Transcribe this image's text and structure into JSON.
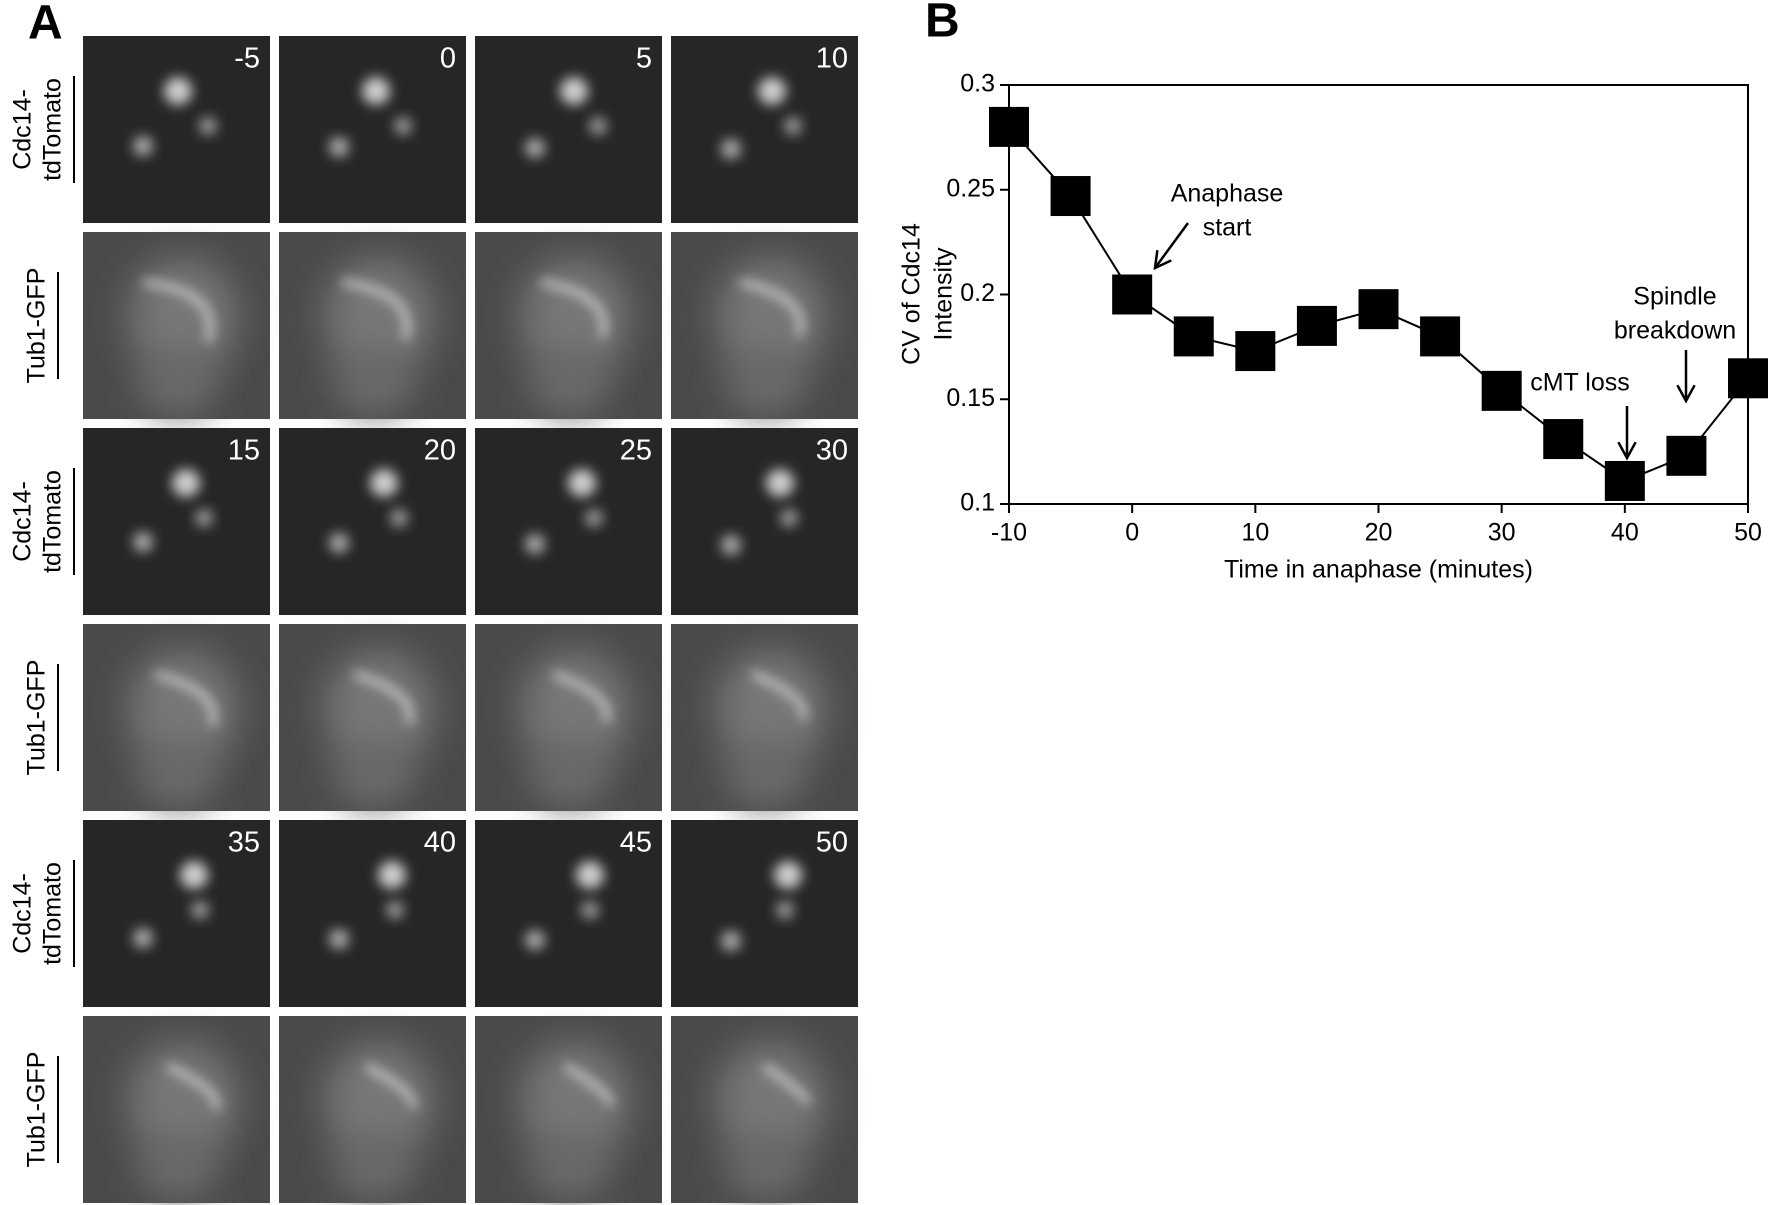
{
  "panel_a": {
    "label": "A",
    "rows": [
      [
        "Cdc14-",
        "tdTomato"
      ],
      [
        "Tub1-GFP"
      ],
      [
        "Cdc14-",
        "tdTomato"
      ],
      [
        "Tub1-GFP"
      ],
      [
        "Cdc14-",
        "tdTomato"
      ],
      [
        "Tub1-GFP"
      ]
    ],
    "timepoints": [
      "-5",
      "0",
      "5",
      "10",
      "15",
      "20",
      "25",
      "30",
      "35",
      "40",
      "45",
      "50"
    ]
  },
  "chart_data": {
    "type": "line",
    "panel_label": "B",
    "xlabel": "Time in anaphase (minutes)",
    "ylabel": [
      "CV of Cdc14",
      "Intensity"
    ],
    "x": [
      -10,
      -5,
      0,
      5,
      10,
      15,
      20,
      25,
      30,
      35,
      40,
      45,
      50
    ],
    "series": [
      {
        "color": "#000000",
        "values": [
          0.28,
          0.247,
          0.2,
          0.18,
          0.173,
          0.185,
          0.193,
          0.18,
          0.154,
          0.131,
          0.111,
          0.123,
          0.16
        ]
      }
    ],
    "xlim": [
      -10,
      50
    ],
    "xticks": [
      -10,
      0,
      10,
      20,
      30,
      40,
      50
    ],
    "ylim": [
      0.1,
      0.3
    ],
    "yticks": [
      0.1,
      0.15,
      0.2,
      0.25,
      0.3
    ],
    "annotations": [
      [
        "Anaphase",
        "start"
      ],
      [
        "cMT loss"
      ],
      [
        "Spindle",
        "breakdown"
      ]
    ]
  }
}
